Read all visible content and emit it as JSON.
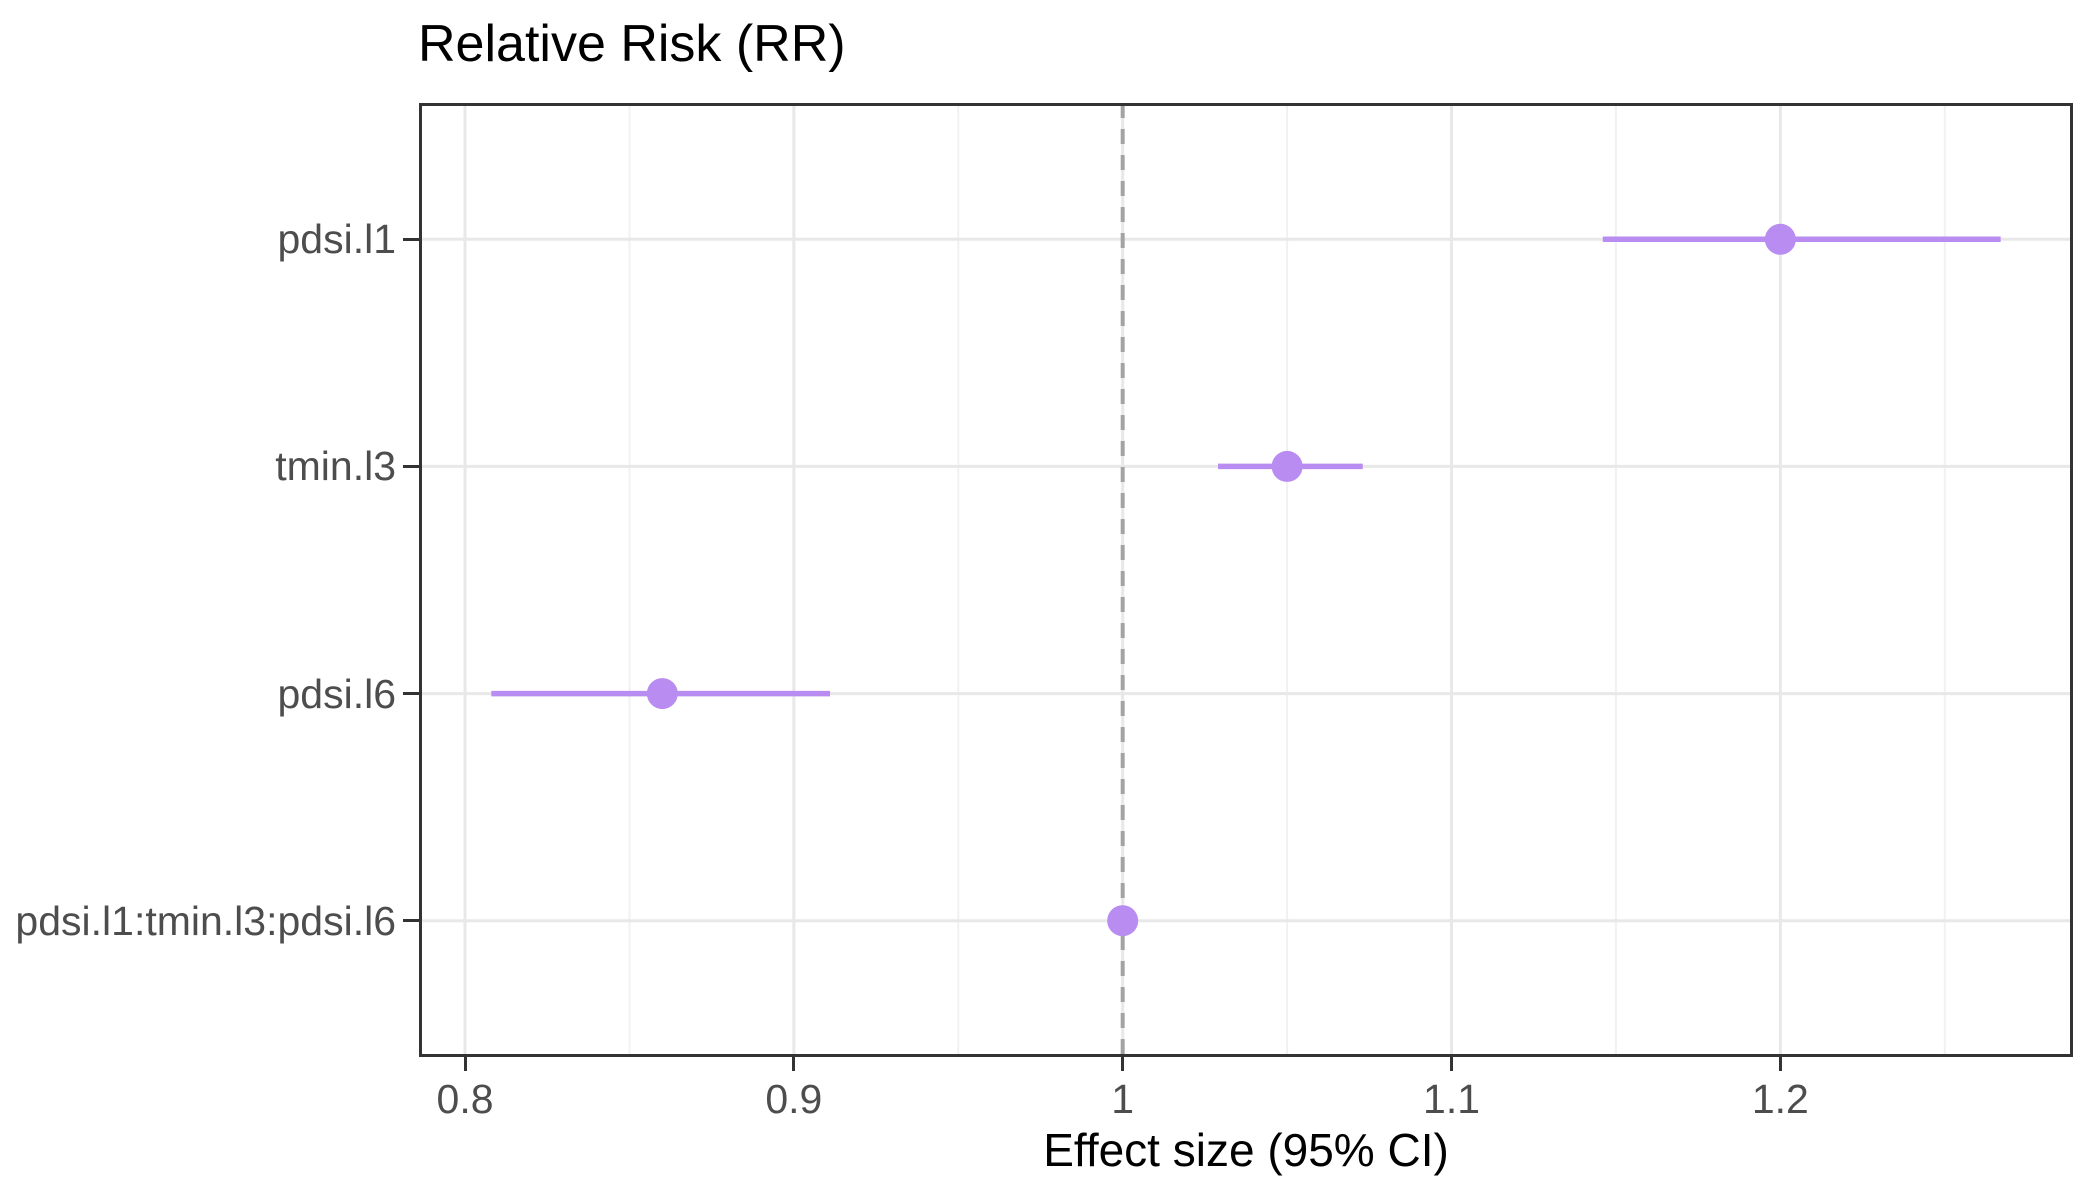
{
  "chart_data": {
    "type": "scatter",
    "subtype": "forest-plot-dot-ci",
    "title": "Relative Risk (RR)",
    "xlabel": "Effect size (95% CI)",
    "ylabel": "",
    "categories": [
      "pdsi.l1",
      "tmin.l3",
      "pdsi.l6",
      "pdsi.l1:tmin.l3:pdsi.l6"
    ],
    "points": [
      {
        "label": "pdsi.l1",
        "estimate": 1.2,
        "ci_low": 1.146,
        "ci_high": 1.267
      },
      {
        "label": "tmin.l3",
        "estimate": 1.05,
        "ci_low": 1.029,
        "ci_high": 1.073
      },
      {
        "label": "pdsi.l6",
        "estimate": 0.86,
        "ci_low": 0.808,
        "ci_high": 0.911
      },
      {
        "label": "pdsi.l1:tmin.l3:pdsi.l6",
        "estimate": 1.0,
        "ci_low": 0.996,
        "ci_high": 1.004
      }
    ],
    "xlim": [
      0.786,
      1.289
    ],
    "x_major_ticks": {
      "values": [
        0.8,
        0.9,
        1.0,
        1.1,
        1.2
      ],
      "labels": [
        "0.8",
        "0.9",
        "1",
        "1.1",
        "1.2"
      ]
    },
    "x_minor_ticks": [
      0.85,
      0.95,
      1.05,
      1.15,
      1.25
    ],
    "reference_line_x": 1.0,
    "grid": true,
    "legend": "none"
  },
  "colors": {
    "point": "#B88CF0",
    "ci_line": "#B88CF0",
    "reference_line": "#A3A3A3",
    "gridline_major": "#E8E8E8",
    "gridline_minor": "#F1F1F1",
    "panel_border": "#333333",
    "tick_mark": "#333333",
    "axis_text": "#4D4D4D",
    "title_text": "#000000",
    "background": "#FFFFFF"
  }
}
